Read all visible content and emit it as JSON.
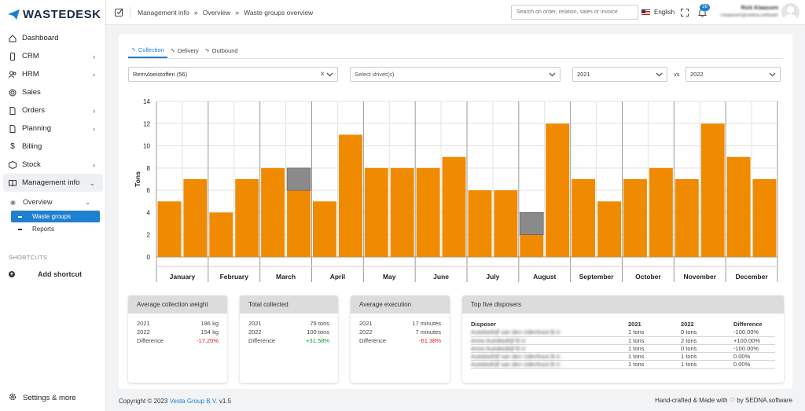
{
  "app": {
    "logo_text": "WASTEDESK"
  },
  "sidebar": {
    "items": [
      {
        "label": "Dashboard",
        "icon": "home-icon",
        "chevron": false
      },
      {
        "label": "CRM",
        "icon": "phone-icon",
        "chevron": true
      },
      {
        "label": "HRM",
        "icon": "users-icon",
        "chevron": true
      },
      {
        "label": "Sales",
        "icon": "target-icon",
        "chevron": false
      },
      {
        "label": "Orders",
        "icon": "file-icon",
        "chevron": true
      },
      {
        "label": "Planning",
        "icon": "file-icon",
        "chevron": true
      },
      {
        "label": "Billing",
        "icon": "dollar-icon",
        "chevron": false
      },
      {
        "label": "Stock",
        "icon": "box-icon",
        "chevron": true
      },
      {
        "label": "Management info",
        "icon": "book-icon",
        "chevron": true
      }
    ],
    "submenu": {
      "overview": "Overview",
      "waste_groups": "Waste groups",
      "reports": "Reports"
    },
    "shortcuts_title": "SHORTCUTS",
    "add_shortcut": "Add shortcut",
    "settings": "Settings & more"
  },
  "topbar": {
    "breadcrumb": [
      "Management info",
      "Overview",
      "Waste groups overview"
    ],
    "search_placeholder": "Search on order, relation, sales or invoice",
    "language": "English",
    "notification_count": "26",
    "user_name": "Rick Klaassen",
    "user_email": "r.klaassen@sedna.software"
  },
  "tabs": [
    "Collection",
    "Delivery",
    "Outbound"
  ],
  "filters": {
    "waste_group": "Remvloeistoffen (56)",
    "driver_placeholder": "Select driver(s)",
    "year_a": "2021",
    "vs": "vs",
    "year_b": "2022"
  },
  "chart_data": {
    "type": "bar",
    "ylabel": "Tons",
    "ylim": [
      0,
      14
    ],
    "yticks": [
      0,
      2,
      4,
      6,
      8,
      10,
      12,
      14
    ],
    "categories": [
      "January",
      "February",
      "March",
      "April",
      "May",
      "June",
      "July",
      "August",
      "September",
      "October",
      "November",
      "December"
    ],
    "series": [
      {
        "name": "2021",
        "values": [
          5,
          4,
          8,
          5,
          8,
          8,
          6,
          2,
          7,
          7,
          7,
          9
        ],
        "overlay": [
          0,
          0,
          0,
          0,
          0,
          0,
          0,
          2,
          0,
          0,
          0,
          0
        ]
      },
      {
        "name": "2022",
        "values": [
          7,
          7,
          6,
          11,
          8,
          9,
          6,
          12,
          5,
          8,
          12,
          7
        ],
        "overlay": [
          0,
          0,
          2,
          0,
          0,
          0,
          0,
          0,
          0,
          0,
          0,
          0
        ]
      }
    ],
    "colors": {
      "bar": "#f08a00",
      "overlay": "#8a8a8a",
      "grid": "#e3e3e3"
    }
  },
  "stats": {
    "weight": {
      "title": "Average collection weight",
      "rows": [
        [
          "2021",
          "186 kg"
        ],
        [
          "2022",
          "154 kg"
        ]
      ],
      "difference_label": "Difference",
      "difference": "-17.20%"
    },
    "total": {
      "title": "Total collected",
      "rows": [
        [
          "2021",
          "76 tons"
        ],
        [
          "2022",
          "100 tons"
        ]
      ],
      "difference_label": "Difference",
      "difference": "+31.58%"
    },
    "execution": {
      "title": "Average execution",
      "rows": [
        [
          "2021",
          "17 minutes"
        ],
        [
          "2022",
          "7 minutes"
        ]
      ],
      "difference_label": "Difference",
      "difference": "-61.38%"
    }
  },
  "disposers": {
    "title": "Top five disposers",
    "headers": [
      "Disposer",
      "2021",
      "2022",
      "Difference"
    ],
    "rows": [
      {
        "name": "Autobedrijf van den Udenhout B.V.",
        "y2021": "1 tons",
        "y2022": "0 tons",
        "diff": "-100.00%",
        "diff_class": "neg"
      },
      {
        "name": "Anne Autobedrijf B.V.",
        "y2021": "1 tons",
        "y2022": "2 tons",
        "diff": "+100.00%",
        "diff_class": "pos"
      },
      {
        "name": "Anne Autobedrijf B.V.",
        "y2021": "1 tons",
        "y2022": "0 tons",
        "diff": "-100.00%",
        "diff_class": "neg"
      },
      {
        "name": "Autobedrijf van den Udenhout B.V.",
        "y2021": "1 tons",
        "y2022": "1 tons",
        "diff": "0.00%",
        "diff_class": "pos"
      },
      {
        "name": "Autobedrijf van den Udenhout B.V.",
        "y2021": "1 tons",
        "y2022": "1 tons",
        "diff": "0.00%",
        "diff_class": "pos"
      }
    ]
  },
  "footer": {
    "copyright": "Copyright © 2023",
    "company": "Vesta Group B.V.",
    "version": "v1.5",
    "made_prefix": "Hand-crafted & Made with",
    "made_by": "by",
    "made_link": "SEDNA.software"
  }
}
